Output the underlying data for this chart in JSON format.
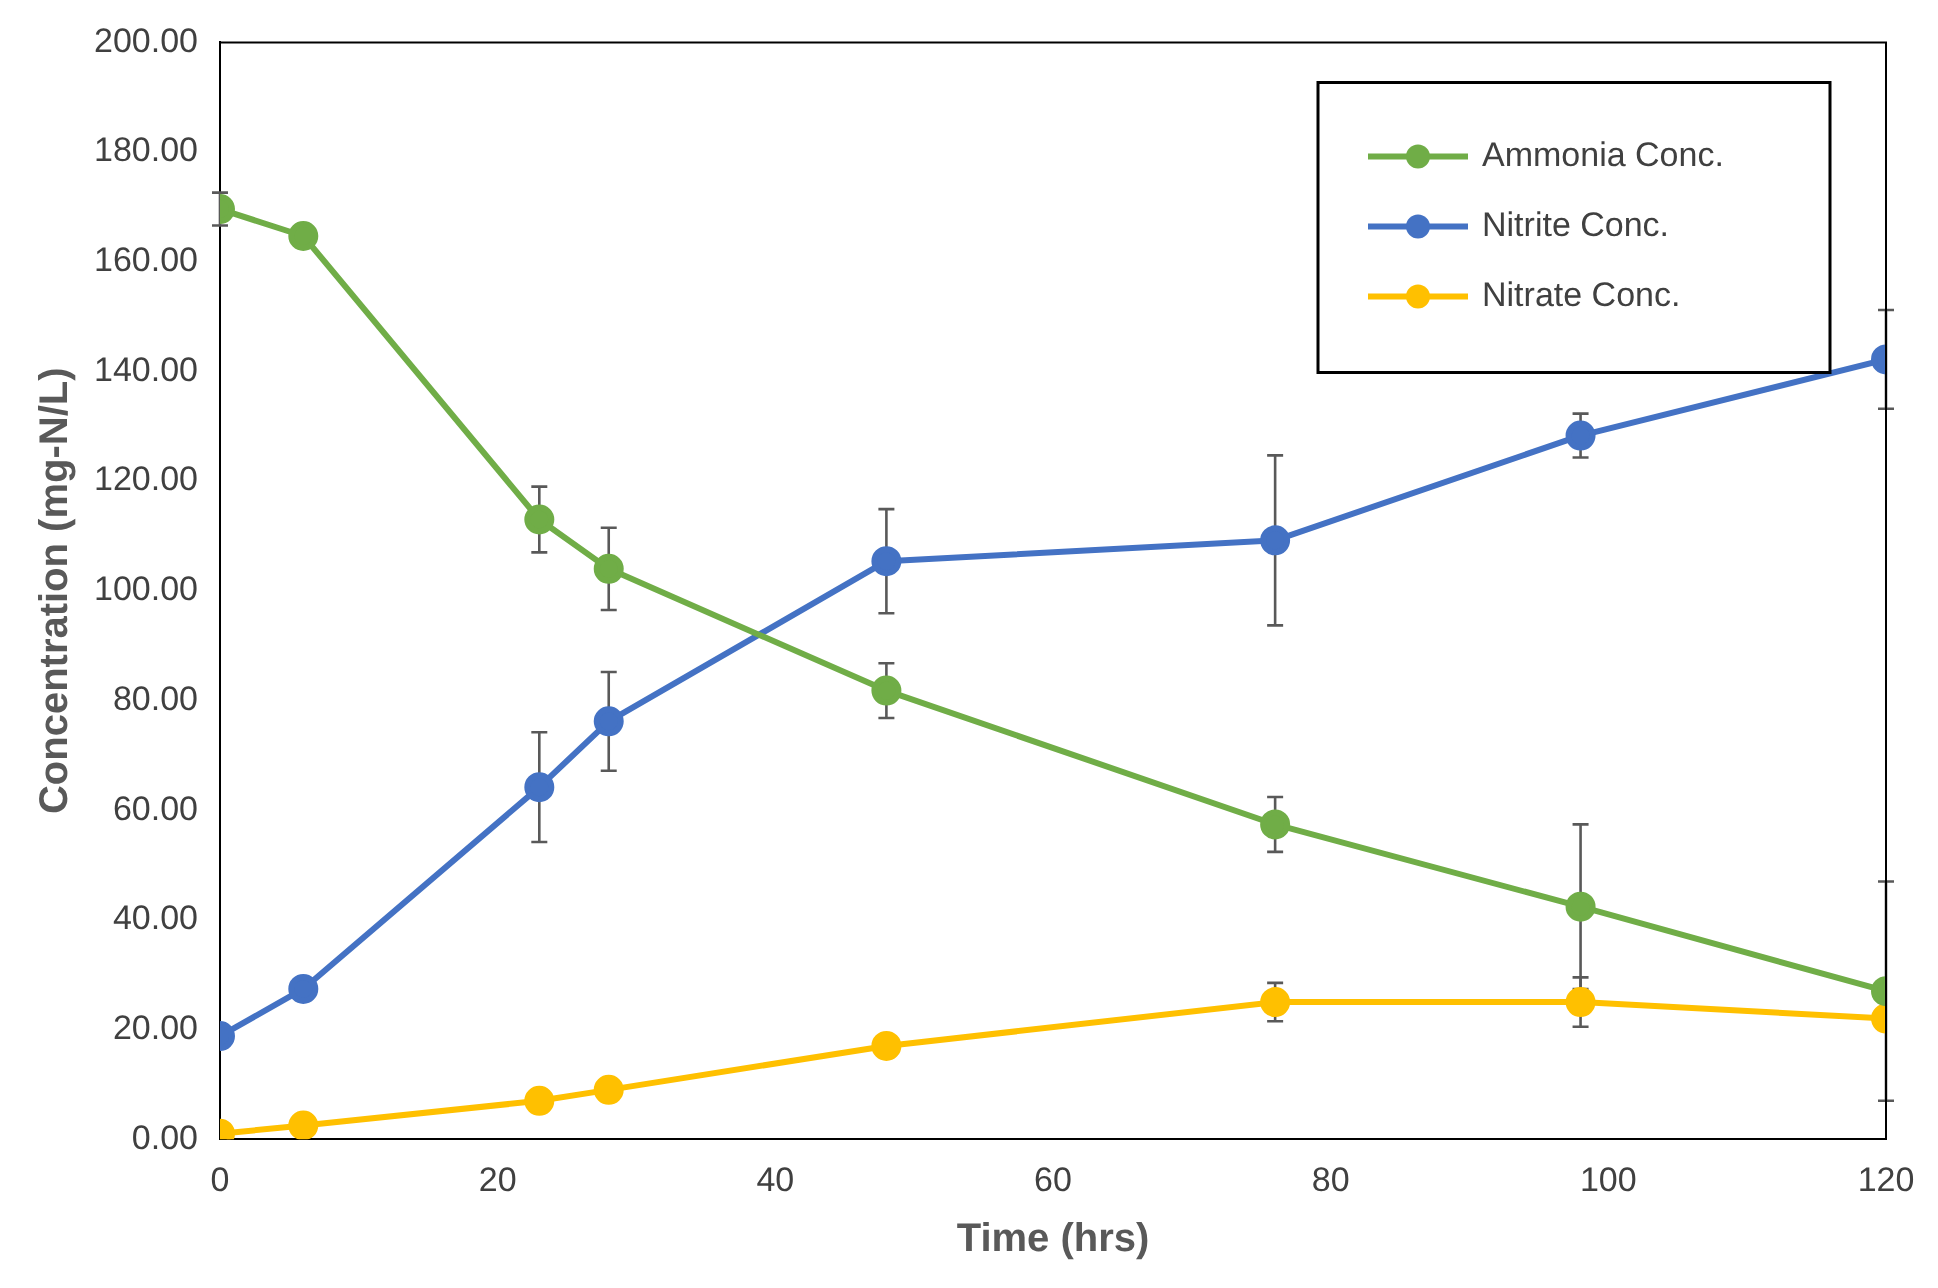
{
  "chart_data": {
    "type": "line",
    "xlabel": "Time (hrs)",
    "ylabel": "Concentration (mg-N/L)",
    "x": [
      0,
      6,
      23,
      28,
      48,
      76,
      98,
      120
    ],
    "series": [
      {
        "name": "Ammonia Conc.",
        "color": "#70ad47",
        "values": [
          169.6,
          164.7,
          113,
          104,
          81.8,
          57.4,
          42.4,
          27
        ],
        "errors": [
          3,
          null,
          6,
          7.5,
          5,
          5,
          15,
          20
        ]
      },
      {
        "name": "Nitrite Conc.",
        "color": "#4472c4",
        "values": [
          18.8,
          27.4,
          64.2,
          76.2,
          105.4,
          109.2,
          128.3,
          142.2
        ],
        "errors": [
          null,
          null,
          10,
          9,
          9.5,
          15.5,
          4,
          9
        ]
      },
      {
        "name": "Nitrate Conc.",
        "color": "#ffc000",
        "values": [
          1,
          2.5,
          7,
          9,
          17,
          25,
          25,
          22
        ],
        "errors": [
          null,
          null,
          null,
          null,
          null,
          3.5,
          4.5,
          null
        ]
      }
    ],
    "xlim": [
      0,
      120
    ],
    "xticks": [
      0,
      20,
      40,
      60,
      80,
      100,
      120
    ],
    "ylim": [
      0,
      200
    ],
    "yticks": [
      {
        "value": 0,
        "label": "0.00"
      },
      {
        "value": 20,
        "label": "20.00"
      },
      {
        "value": 40,
        "label": "40.00"
      },
      {
        "value": 60,
        "label": "60.00"
      },
      {
        "value": 80,
        "label": "80.00"
      },
      {
        "value": 100,
        "label": "100.00"
      },
      {
        "value": 120,
        "label": "120.00"
      },
      {
        "value": 140,
        "label": "140.00"
      },
      {
        "value": 160,
        "label": "160.00"
      },
      {
        "value": 180,
        "label": "180.00"
      },
      {
        "value": 200,
        "label": "200.00"
      }
    ],
    "grid": false,
    "legend": "top right",
    "marker": "circle",
    "line_style": "solid"
  }
}
